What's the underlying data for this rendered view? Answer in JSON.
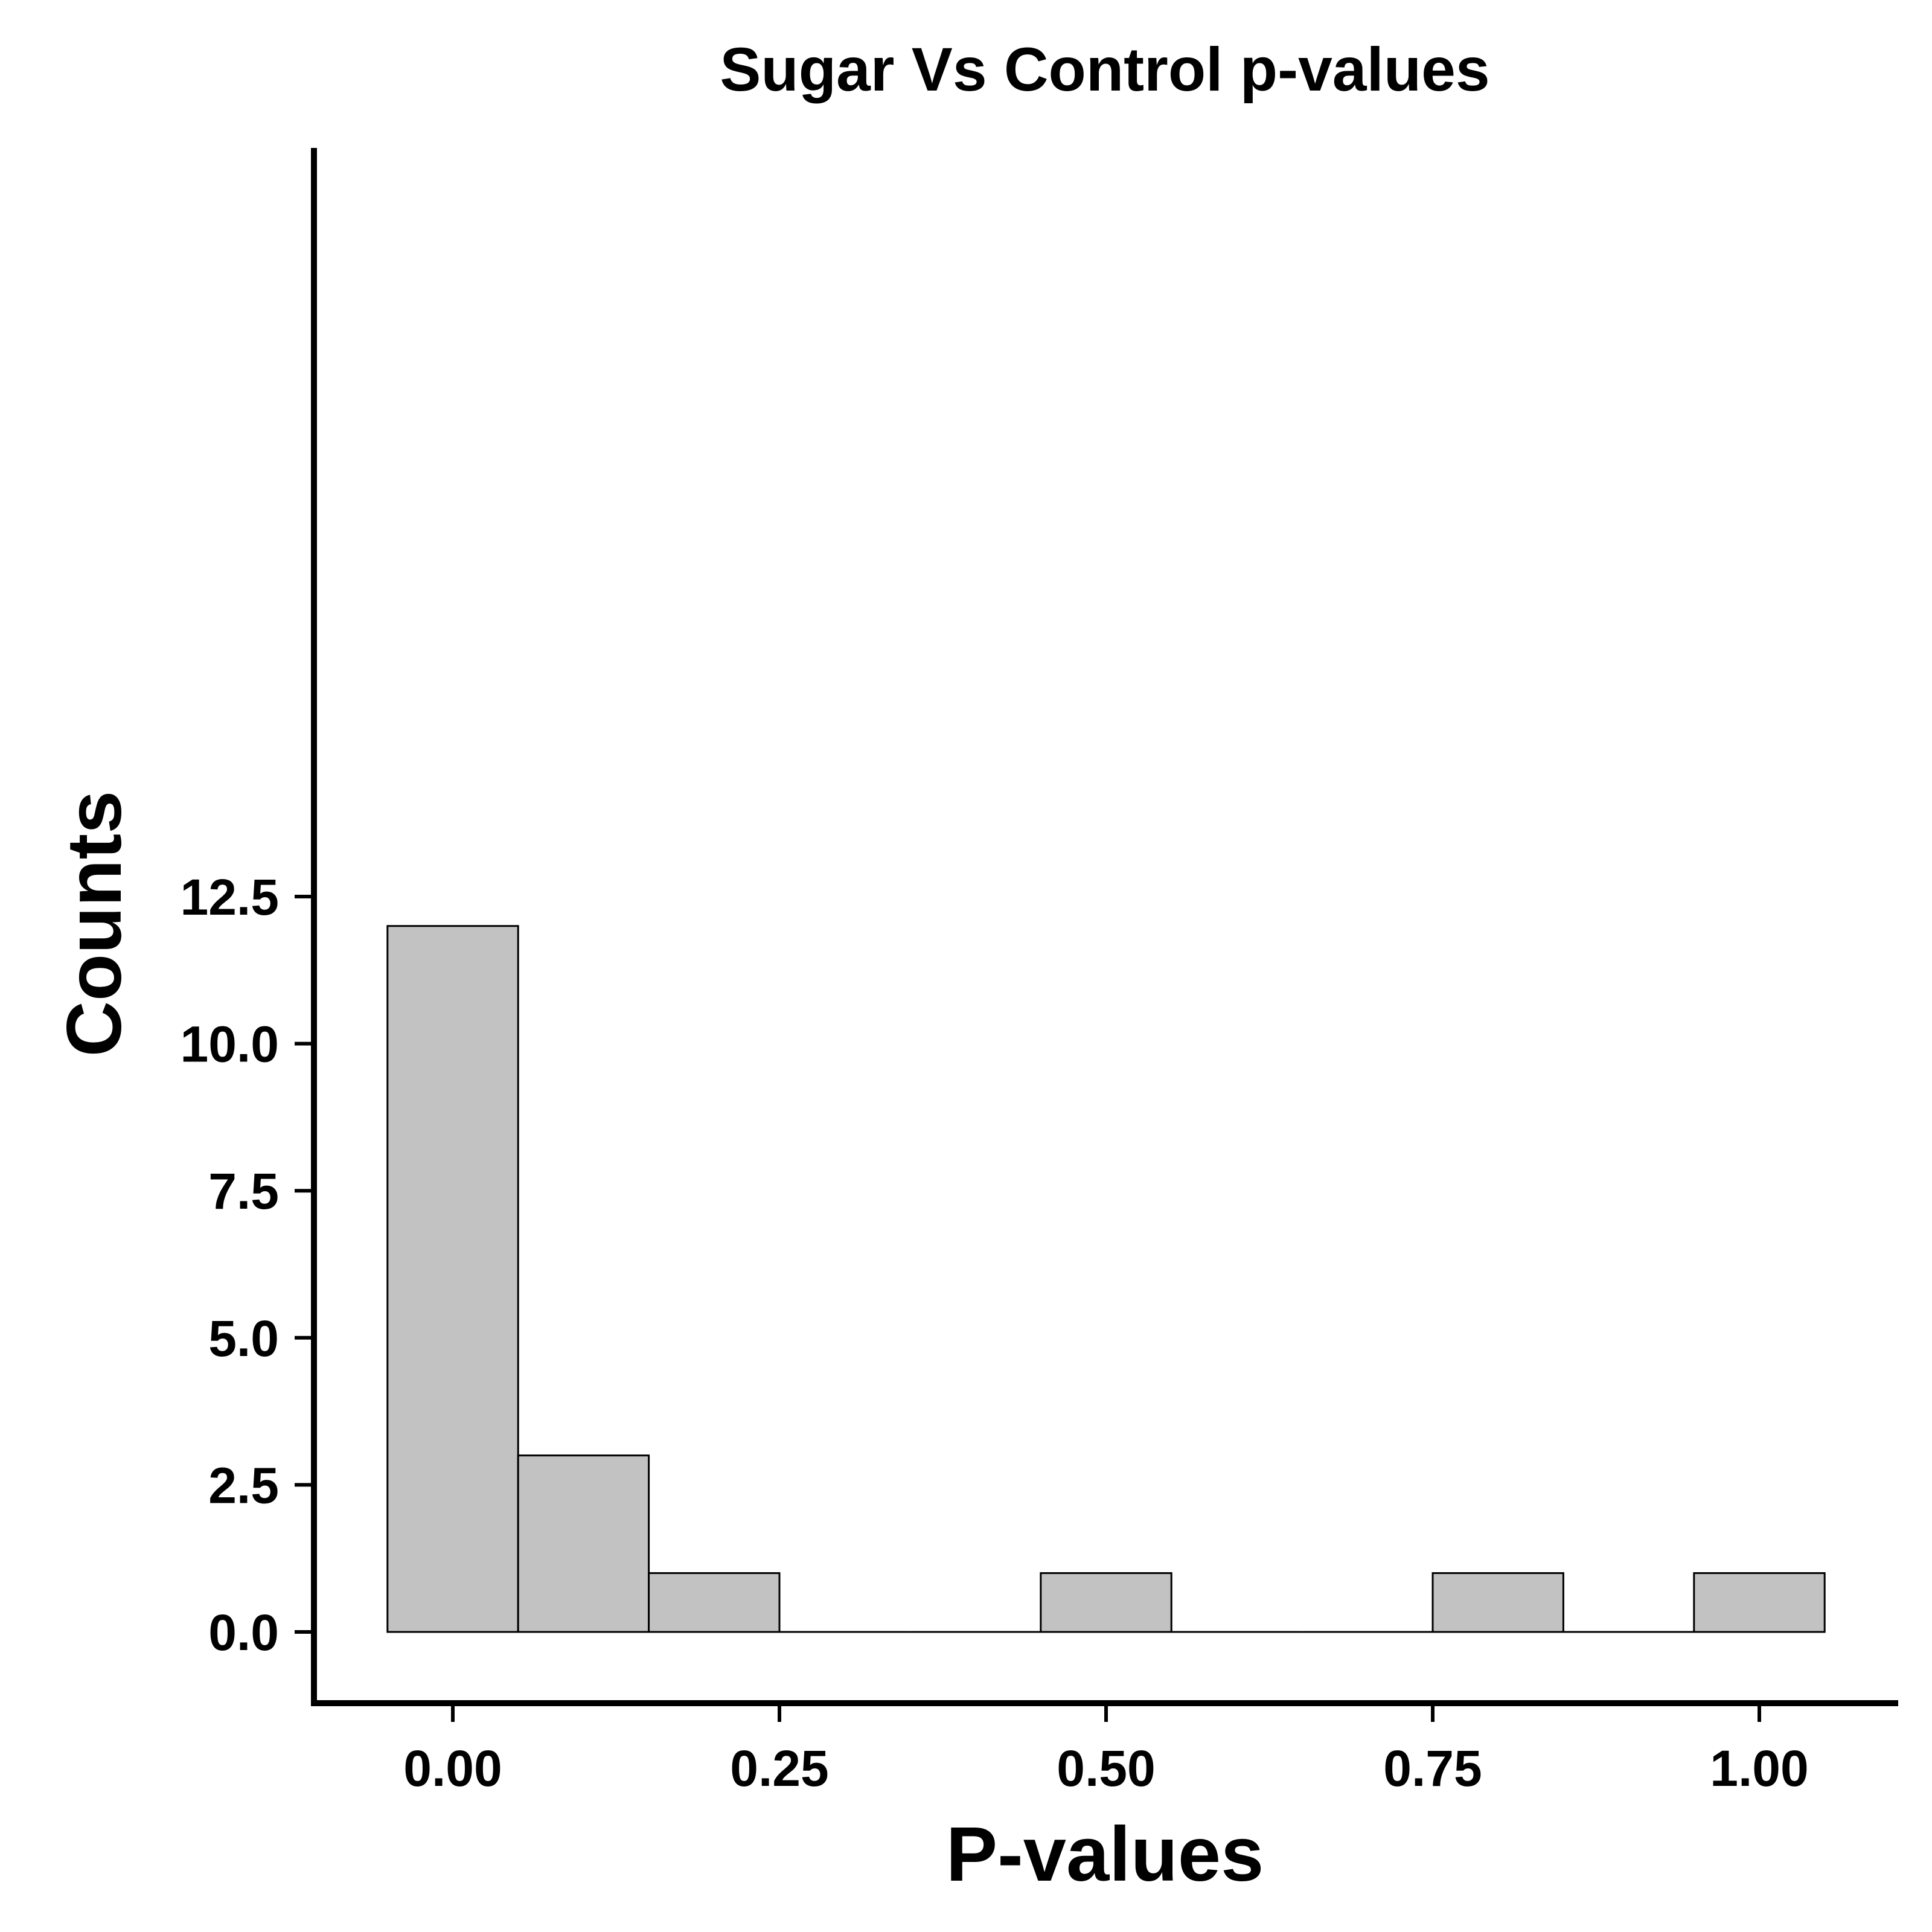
{
  "chart_data": {
    "type": "bar",
    "title": "Sugar Vs Control p-values",
    "xlabel": "P-values",
    "ylabel": "Counts",
    "xlim": [
      -0.0525,
      2.0
    ],
    "ylim": [
      -0.6,
      12.5
    ],
    "x_ticks": [
      0.0,
      0.25,
      0.5,
      0.75,
      1.0
    ],
    "x_tick_labels": [
      "0.00",
      "0.25",
      "0.50",
      "0.75",
      "1.00"
    ],
    "y_ticks": [
      0.0,
      2.5,
      5.0,
      7.5,
      10.0,
      12.5
    ],
    "y_tick_labels": [
      "0.0",
      "2.5",
      "5.0",
      "7.5",
      "10.0",
      "12.5"
    ],
    "bin_width": 0.1,
    "bins": [
      {
        "x": 0.0,
        "count": 12
      },
      {
        "x": 0.1,
        "count": 3
      },
      {
        "x": 0.2,
        "count": 1
      },
      {
        "x": 0.3,
        "count": 0
      },
      {
        "x": 0.4,
        "count": 0
      },
      {
        "x": 0.5,
        "count": 1
      },
      {
        "x": 0.6,
        "count": 0
      },
      {
        "x": 0.7,
        "count": 0
      },
      {
        "x": 0.8,
        "count": 1
      },
      {
        "x": 0.9,
        "count": 0
      },
      {
        "x": 1.0,
        "count": 1
      }
    ],
    "grid": false,
    "legend": "none",
    "colors": {
      "bar_fill": "#c2c2c2",
      "bar_stroke": "#000000",
      "axis": "#000000"
    }
  }
}
